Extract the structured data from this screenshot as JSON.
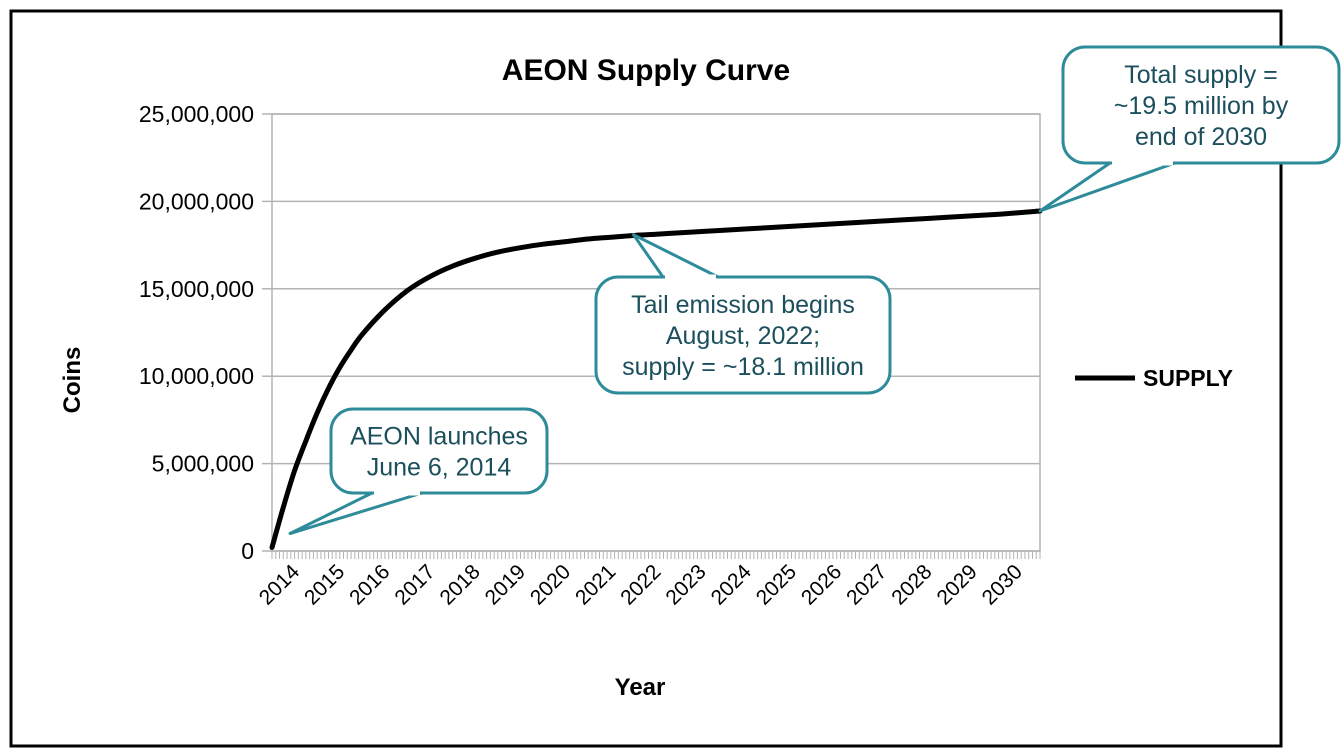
{
  "chart_data": {
    "type": "line",
    "title": "AEON Supply Curve",
    "xlabel": "Year",
    "ylabel": "Coins",
    "ylim": [
      0,
      25000000
    ],
    "yticks": [
      0,
      5000000,
      10000000,
      15000000,
      20000000,
      25000000
    ],
    "ytick_labels": [
      "0",
      "5,000,000",
      "10,000,000",
      "15,000,000",
      "20,000,000",
      "25,000,000"
    ],
    "xlim": [
      2014,
      2031
    ],
    "xtick_labels": [
      "2014",
      "2015",
      "2016",
      "2017",
      "2018",
      "2019",
      "2020",
      "2021",
      "2022",
      "2023",
      "2024",
      "2025",
      "2026",
      "2027",
      "2028",
      "2029",
      "2030"
    ],
    "grid": true,
    "legend_position": "right",
    "series": [
      {
        "name": "SUPPLY",
        "color": "#000000",
        "x": [
          2014.0,
          2014.25,
          2014.5,
          2014.75,
          2015.0,
          2015.25,
          2015.5,
          2015.75,
          2016.0,
          2016.5,
          2017.0,
          2017.5,
          2018.0,
          2018.5,
          2019.0,
          2019.5,
          2020.0,
          2020.5,
          2021.0,
          2021.5,
          2022.0,
          2022.5,
          2023.0,
          2024.0,
          2025.0,
          2026.0,
          2027.0,
          2028.0,
          2029.0,
          2030.0,
          2031.0
        ],
        "y": [
          200000,
          2500000,
          4600000,
          6300000,
          7900000,
          9300000,
          10500000,
          11500000,
          12400000,
          13800000,
          14900000,
          15700000,
          16300000,
          16750000,
          17100000,
          17350000,
          17550000,
          17700000,
          17850000,
          17950000,
          18050000,
          18120000,
          18200000,
          18350000,
          18500000,
          18650000,
          18800000,
          18950000,
          19100000,
          19250000,
          19450000
        ]
      }
    ],
    "annotations": [
      {
        "lines": [
          "AEON launches",
          "June 6, 2014"
        ],
        "target_x": 2014.4,
        "target_y": 1000000
      },
      {
        "lines": [
          "Tail emission begins",
          "August, 2022;",
          "supply = ~18.1 million"
        ],
        "target_x": 2022.0,
        "target_y": 18100000
      },
      {
        "lines": [
          "Total supply =",
          "~19.5 million by",
          "end of 2030"
        ],
        "target_x": 2031.0,
        "target_y": 19450000
      }
    ],
    "callout_color": "#2e8b9a",
    "callout_text_color": "#1b4f5c"
  }
}
